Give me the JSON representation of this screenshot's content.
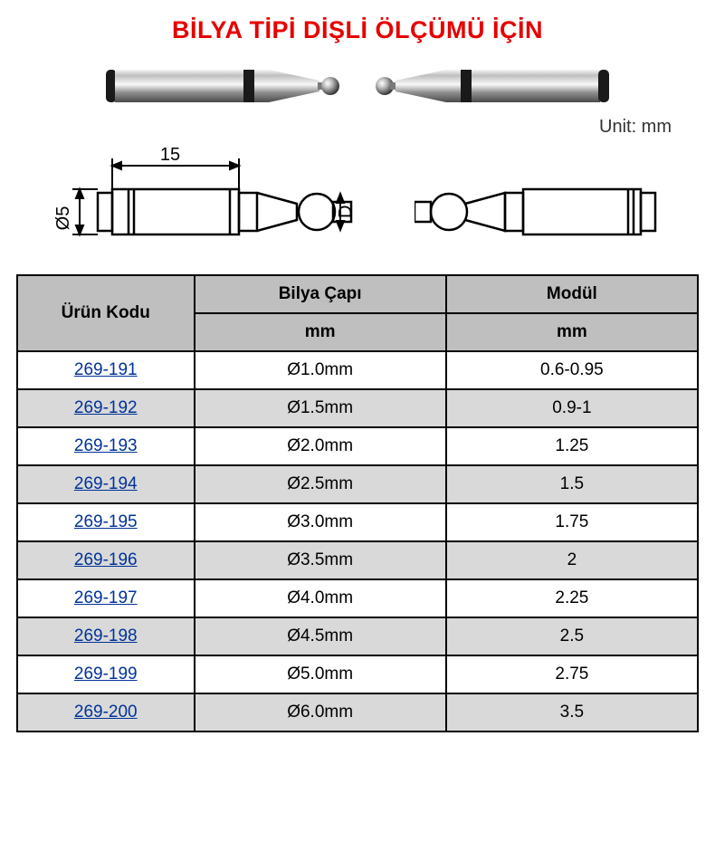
{
  "title": "BİLYA TİPİ DİŞLİ ÖLÇÜMÜ İÇİN",
  "unit_label": "Unit: mm",
  "colors": {
    "title_color": "#e60000",
    "header_bg": "#bfbfbf",
    "alt_row_bg": "#d9d9d9",
    "link_color": "#003399",
    "border_color": "#000000",
    "background": "#ffffff",
    "text_color": "#000000"
  },
  "typography": {
    "title_fontsize": 27,
    "title_weight": "bold",
    "cell_fontsize": 19,
    "header_fontsize": 19,
    "unit_fontsize": 20,
    "font_family": "Arial"
  },
  "tech_drawing": {
    "shaft_length_label": "15",
    "shaft_diameter_label": "Ø5",
    "ball_diameter_label": "D"
  },
  "table": {
    "columns": [
      {
        "key": "code",
        "header": "Ürün Kodu",
        "sub": "",
        "width_pct": 26,
        "align": "center",
        "is_link": true
      },
      {
        "key": "diameter",
        "header": "Bilya Çapı",
        "sub": "mm",
        "width_pct": 37,
        "align": "center",
        "is_link": false
      },
      {
        "key": "module",
        "header": "Modül",
        "sub": "mm",
        "width_pct": 37,
        "align": "center",
        "is_link": false
      }
    ],
    "rows": [
      {
        "code": "269-191",
        "diameter": "Ø1.0mm",
        "module": "0.6-0.95",
        "alt": false
      },
      {
        "code": "269-192",
        "diameter": "Ø1.5mm",
        "module": "0.9-1",
        "alt": true
      },
      {
        "code": "269-193",
        "diameter": "Ø2.0mm",
        "module": "1.25",
        "alt": false
      },
      {
        "code": "269-194",
        "diameter": "Ø2.5mm",
        "module": "1.5",
        "alt": true
      },
      {
        "code": "269-195",
        "diameter": "Ø3.0mm",
        "module": "1.75",
        "alt": false
      },
      {
        "code": "269-196",
        "diameter": "Ø3.5mm",
        "module": "2",
        "alt": true
      },
      {
        "code": "269-197",
        "diameter": "Ø4.0mm",
        "module": "2.25",
        "alt": false
      },
      {
        "code": "269-198",
        "diameter": "Ø4.5mm",
        "module": "2.5",
        "alt": true
      },
      {
        "code": "269-199",
        "diameter": "Ø5.0mm",
        "module": "2.75",
        "alt": false
      },
      {
        "code": "269-200",
        "diameter": "Ø6.0mm",
        "module": "3.5",
        "alt": true
      }
    ]
  }
}
